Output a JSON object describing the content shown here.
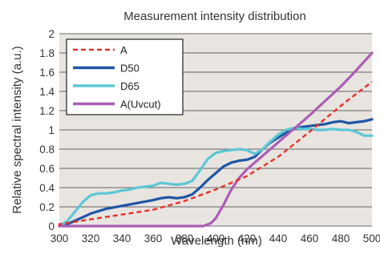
{
  "chart_data": {
    "type": "line",
    "title": "Measurement intensity distribution",
    "xlabel": "Wavelength (nm)",
    "ylabel": "Relative spectral intensity (a.u.)",
    "xlim": [
      300,
      500
    ],
    "ylim": [
      0,
      2
    ],
    "x_ticks": [
      300,
      320,
      340,
      360,
      380,
      400,
      420,
      440,
      460,
      480,
      500
    ],
    "y_ticks": [
      0,
      0.2,
      0.4,
      0.6,
      0.8,
      1,
      1.2,
      1.4,
      1.6,
      1.8,
      2
    ],
    "x_tick_labels": [
      "300",
      "320",
      "340",
      "360",
      "380",
      "400",
      "420",
      "440",
      "460",
      "480",
      "500"
    ],
    "y_tick_labels": [
      "0",
      "0.2",
      "0.4",
      "0.6",
      "0.8",
      "1",
      "1.2",
      "1.4",
      "1.6",
      "1.8",
      "2"
    ],
    "grid": "horizontal",
    "plot_background": "#e8e4e0",
    "legend": {
      "placement": "top-left"
    },
    "series": [
      {
        "name": "A",
        "color": "#e8302a",
        "dash": "dashed",
        "points": [
          [
            290,
            0
          ],
          [
            300,
            0.02
          ],
          [
            320,
            0.07
          ],
          [
            340,
            0.12
          ],
          [
            360,
            0.17
          ],
          [
            380,
            0.26
          ],
          [
            400,
            0.38
          ],
          [
            420,
            0.52
          ],
          [
            440,
            0.72
          ],
          [
            460,
            0.98
          ],
          [
            480,
            1.25
          ],
          [
            500,
            1.5
          ]
        ]
      },
      {
        "name": "D50",
        "color": "#1f56a6",
        "dash": "solid",
        "points": [
          [
            290,
            0
          ],
          [
            300,
            0
          ],
          [
            305,
            0.02
          ],
          [
            312,
            0.07
          ],
          [
            320,
            0.13
          ],
          [
            330,
            0.18
          ],
          [
            340,
            0.21
          ],
          [
            350,
            0.24
          ],
          [
            360,
            0.27
          ],
          [
            365,
            0.29
          ],
          [
            370,
            0.3
          ],
          [
            375,
            0.29
          ],
          [
            380,
            0.3
          ],
          [
            385,
            0.33
          ],
          [
            390,
            0.4
          ],
          [
            395,
            0.48
          ],
          [
            400,
            0.55
          ],
          [
            405,
            0.62
          ],
          [
            410,
            0.66
          ],
          [
            415,
            0.68
          ],
          [
            420,
            0.69
          ],
          [
            425,
            0.72
          ],
          [
            430,
            0.8
          ],
          [
            435,
            0.87
          ],
          [
            440,
            0.92
          ],
          [
            445,
            0.97
          ],
          [
            450,
            1.01
          ],
          [
            455,
            1.03
          ],
          [
            460,
            1.04
          ],
          [
            465,
            1.05
          ],
          [
            470,
            1.06
          ],
          [
            475,
            1.08
          ],
          [
            480,
            1.09
          ],
          [
            485,
            1.07
          ],
          [
            490,
            1.08
          ],
          [
            495,
            1.09
          ],
          [
            500,
            1.11
          ]
        ]
      },
      {
        "name": "D65",
        "color": "#5bc7d6",
        "dash": "solid",
        "points": [
          [
            290,
            0
          ],
          [
            300,
            0
          ],
          [
            305,
            0.05
          ],
          [
            310,
            0.15
          ],
          [
            315,
            0.25
          ],
          [
            320,
            0.32
          ],
          [
            325,
            0.34
          ],
          [
            330,
            0.34
          ],
          [
            335,
            0.35
          ],
          [
            340,
            0.37
          ],
          [
            345,
            0.38
          ],
          [
            350,
            0.4
          ],
          [
            355,
            0.41
          ],
          [
            360,
            0.42
          ],
          [
            365,
            0.45
          ],
          [
            370,
            0.44
          ],
          [
            375,
            0.43
          ],
          [
            380,
            0.44
          ],
          [
            385,
            0.47
          ],
          [
            390,
            0.58
          ],
          [
            395,
            0.7
          ],
          [
            400,
            0.76
          ],
          [
            405,
            0.78
          ],
          [
            410,
            0.79
          ],
          [
            415,
            0.8
          ],
          [
            420,
            0.79
          ],
          [
            425,
            0.75
          ],
          [
            430,
            0.8
          ],
          [
            435,
            0.88
          ],
          [
            440,
            0.95
          ],
          [
            445,
            1.0
          ],
          [
            450,
            1.02
          ],
          [
            455,
            1.01
          ],
          [
            460,
            1.01
          ],
          [
            465,
            1.0
          ],
          [
            470,
            1.0
          ],
          [
            475,
            1.01
          ],
          [
            480,
            1.0
          ],
          [
            485,
            1.0
          ],
          [
            490,
            0.98
          ],
          [
            495,
            0.94
          ],
          [
            500,
            0.94
          ]
        ]
      },
      {
        "name": "A(Uvcut)",
        "color": "#ab5db5",
        "dash": "solid",
        "points": [
          [
            290,
            0
          ],
          [
            300,
            0
          ],
          [
            380,
            0
          ],
          [
            392,
            0
          ],
          [
            397,
            0.03
          ],
          [
            400,
            0.08
          ],
          [
            405,
            0.22
          ],
          [
            410,
            0.38
          ],
          [
            415,
            0.5
          ],
          [
            420,
            0.59
          ],
          [
            425,
            0.66
          ],
          [
            430,
            0.73
          ],
          [
            440,
            0.87
          ],
          [
            450,
            1.01
          ],
          [
            460,
            1.15
          ],
          [
            470,
            1.3
          ],
          [
            480,
            1.45
          ],
          [
            490,
            1.62
          ],
          [
            500,
            1.8
          ]
        ]
      }
    ]
  }
}
